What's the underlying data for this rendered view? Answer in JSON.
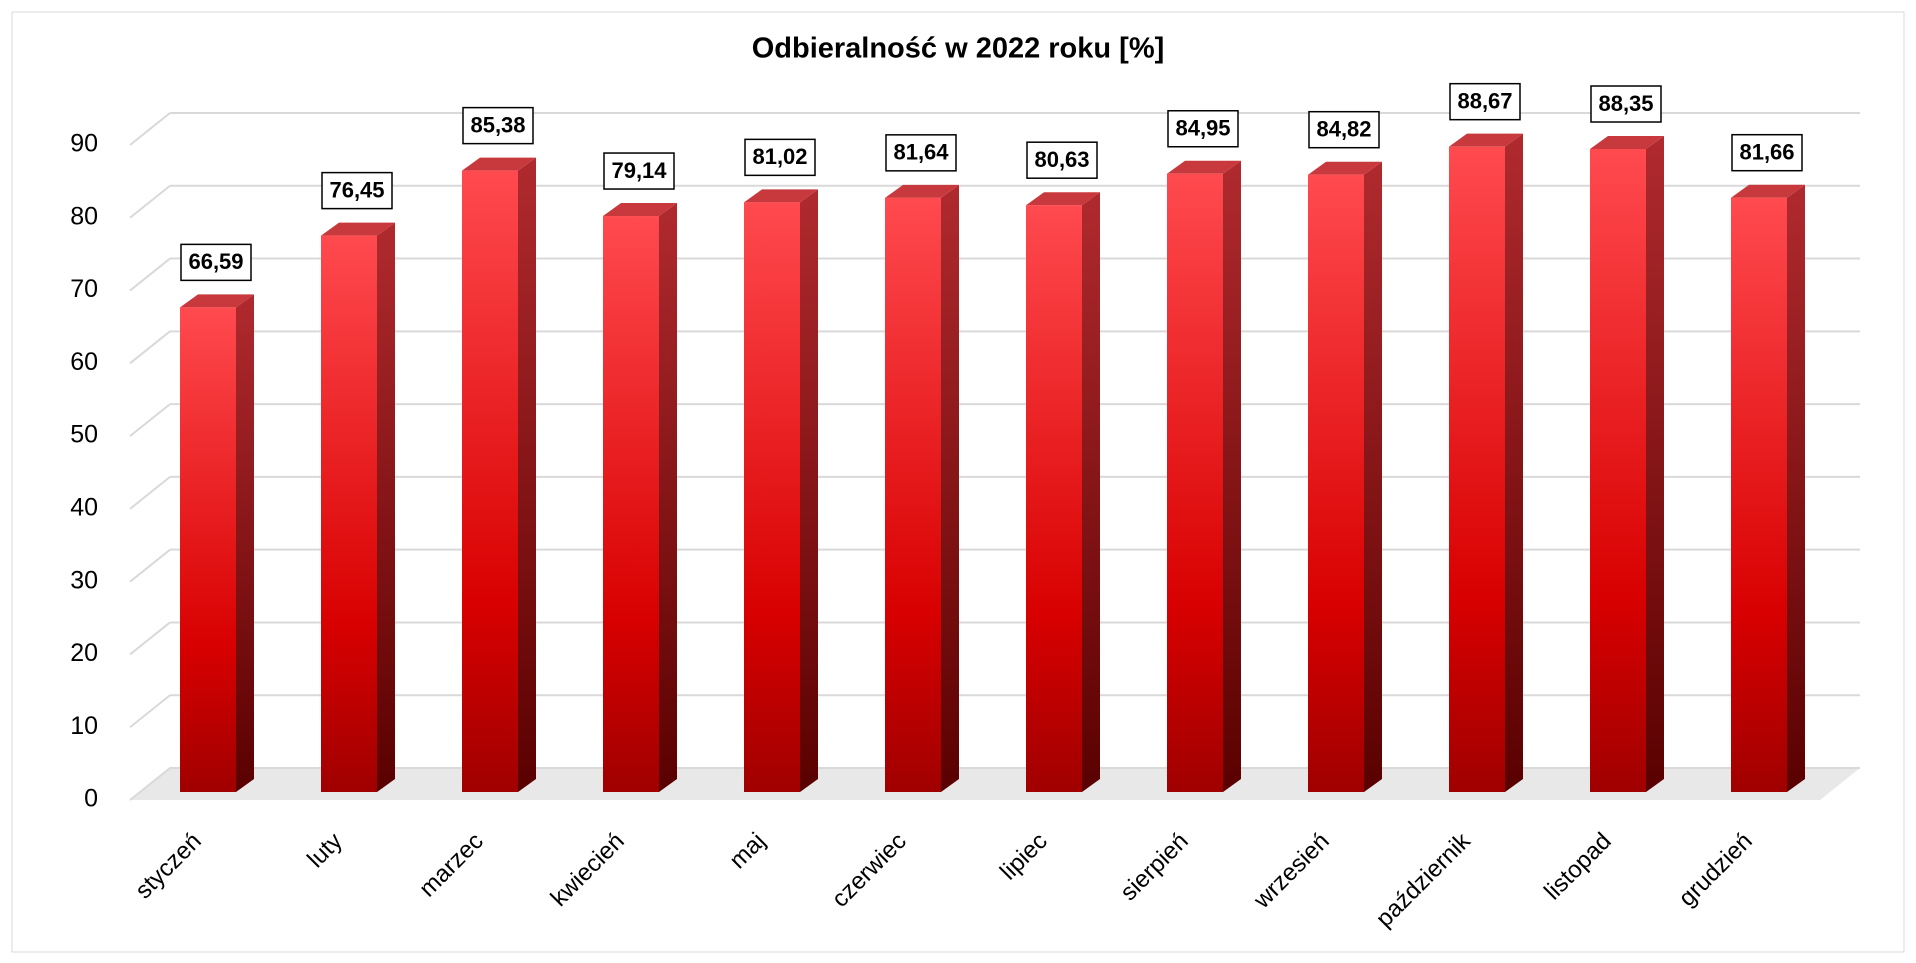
{
  "chart_data": {
    "type": "bar",
    "title": "Odbieralność w 2022 roku [%]",
    "categories": [
      "styczeń",
      "luty",
      "marzec",
      "kwiecień",
      "maj",
      "czerwiec",
      "lipiec",
      "sierpień",
      "wrzesień",
      "październik",
      "listopad",
      "grudzień"
    ],
    "values": [
      66.59,
      76.45,
      85.38,
      79.14,
      81.02,
      81.64,
      80.63,
      84.95,
      84.82,
      88.67,
      88.35,
      81.66
    ],
    "value_labels": [
      "66,59",
      "76,45",
      "85,38",
      "79,14",
      "81,02",
      "81,64",
      "80,63",
      "84,95",
      "84,82",
      "88,67",
      "88,35",
      "81,66"
    ],
    "color": "#e0161b",
    "ylim": [
      0,
      90
    ],
    "yticks": [
      0,
      10,
      20,
      30,
      40,
      50,
      60,
      70,
      80,
      90
    ],
    "grid": true
  }
}
